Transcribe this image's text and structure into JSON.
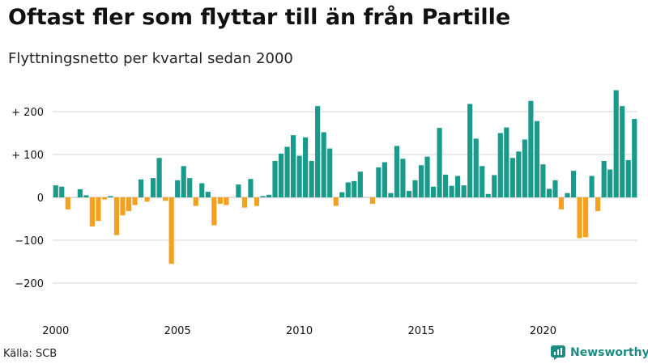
{
  "header": {
    "title": "Oftast fler som flyttar till än från Partille",
    "subtitle": "Flyttningsnetto per kvartal sedan 2000"
  },
  "footer": {
    "source": "Källa: SCB",
    "brand": "Newsworthy"
  },
  "colors": {
    "positive": "#1a9a8a",
    "negative": "#f4a020",
    "grid": "#d6d6d6",
    "brand": "#1e8c82"
  },
  "chart_data": {
    "type": "bar",
    "title": "Oftast fler som flyttar till än från Partille",
    "subtitle": "Flyttningsnetto per kvartal sedan 2000",
    "xlabel": "",
    "ylabel": "",
    "ylim": [
      -250,
      260
    ],
    "yticks": [
      200,
      100,
      0,
      -100,
      -200
    ],
    "ytick_labels": [
      "+ 200",
      "+ 100",
      "0",
      "−100",
      "−200"
    ],
    "x_start_year": 2000,
    "periods_per_year": 4,
    "xticks": [
      2000,
      2005,
      2010,
      2015,
      2020
    ],
    "xtick_labels": [
      "2000",
      "2005",
      "2010",
      "2015",
      "2020"
    ],
    "grid": true,
    "legend": "none",
    "values": [
      28,
      25,
      -28,
      0,
      19,
      5,
      -68,
      -55,
      -5,
      3,
      -88,
      -42,
      -32,
      -18,
      42,
      -10,
      45,
      92,
      -8,
      -155,
      40,
      73,
      45,
      -20,
      33,
      13,
      -65,
      -15,
      -18,
      0,
      30,
      -24,
      43,
      -20,
      3,
      6,
      85,
      102,
      118,
      145,
      97,
      140,
      85,
      213,
      152,
      114,
      -20,
      12,
      35,
      38,
      60,
      0,
      -15,
      70,
      82,
      10,
      120,
      90,
      15,
      40,
      75,
      95,
      25,
      162,
      53,
      27,
      50,
      28,
      218,
      137,
      73,
      8,
      52,
      150,
      163,
      92,
      107,
      135,
      225,
      178,
      77,
      20,
      40,
      -28,
      10,
      62,
      -95,
      -93,
      50,
      -32,
      85,
      65,
      250,
      213,
      87,
      183
    ]
  }
}
